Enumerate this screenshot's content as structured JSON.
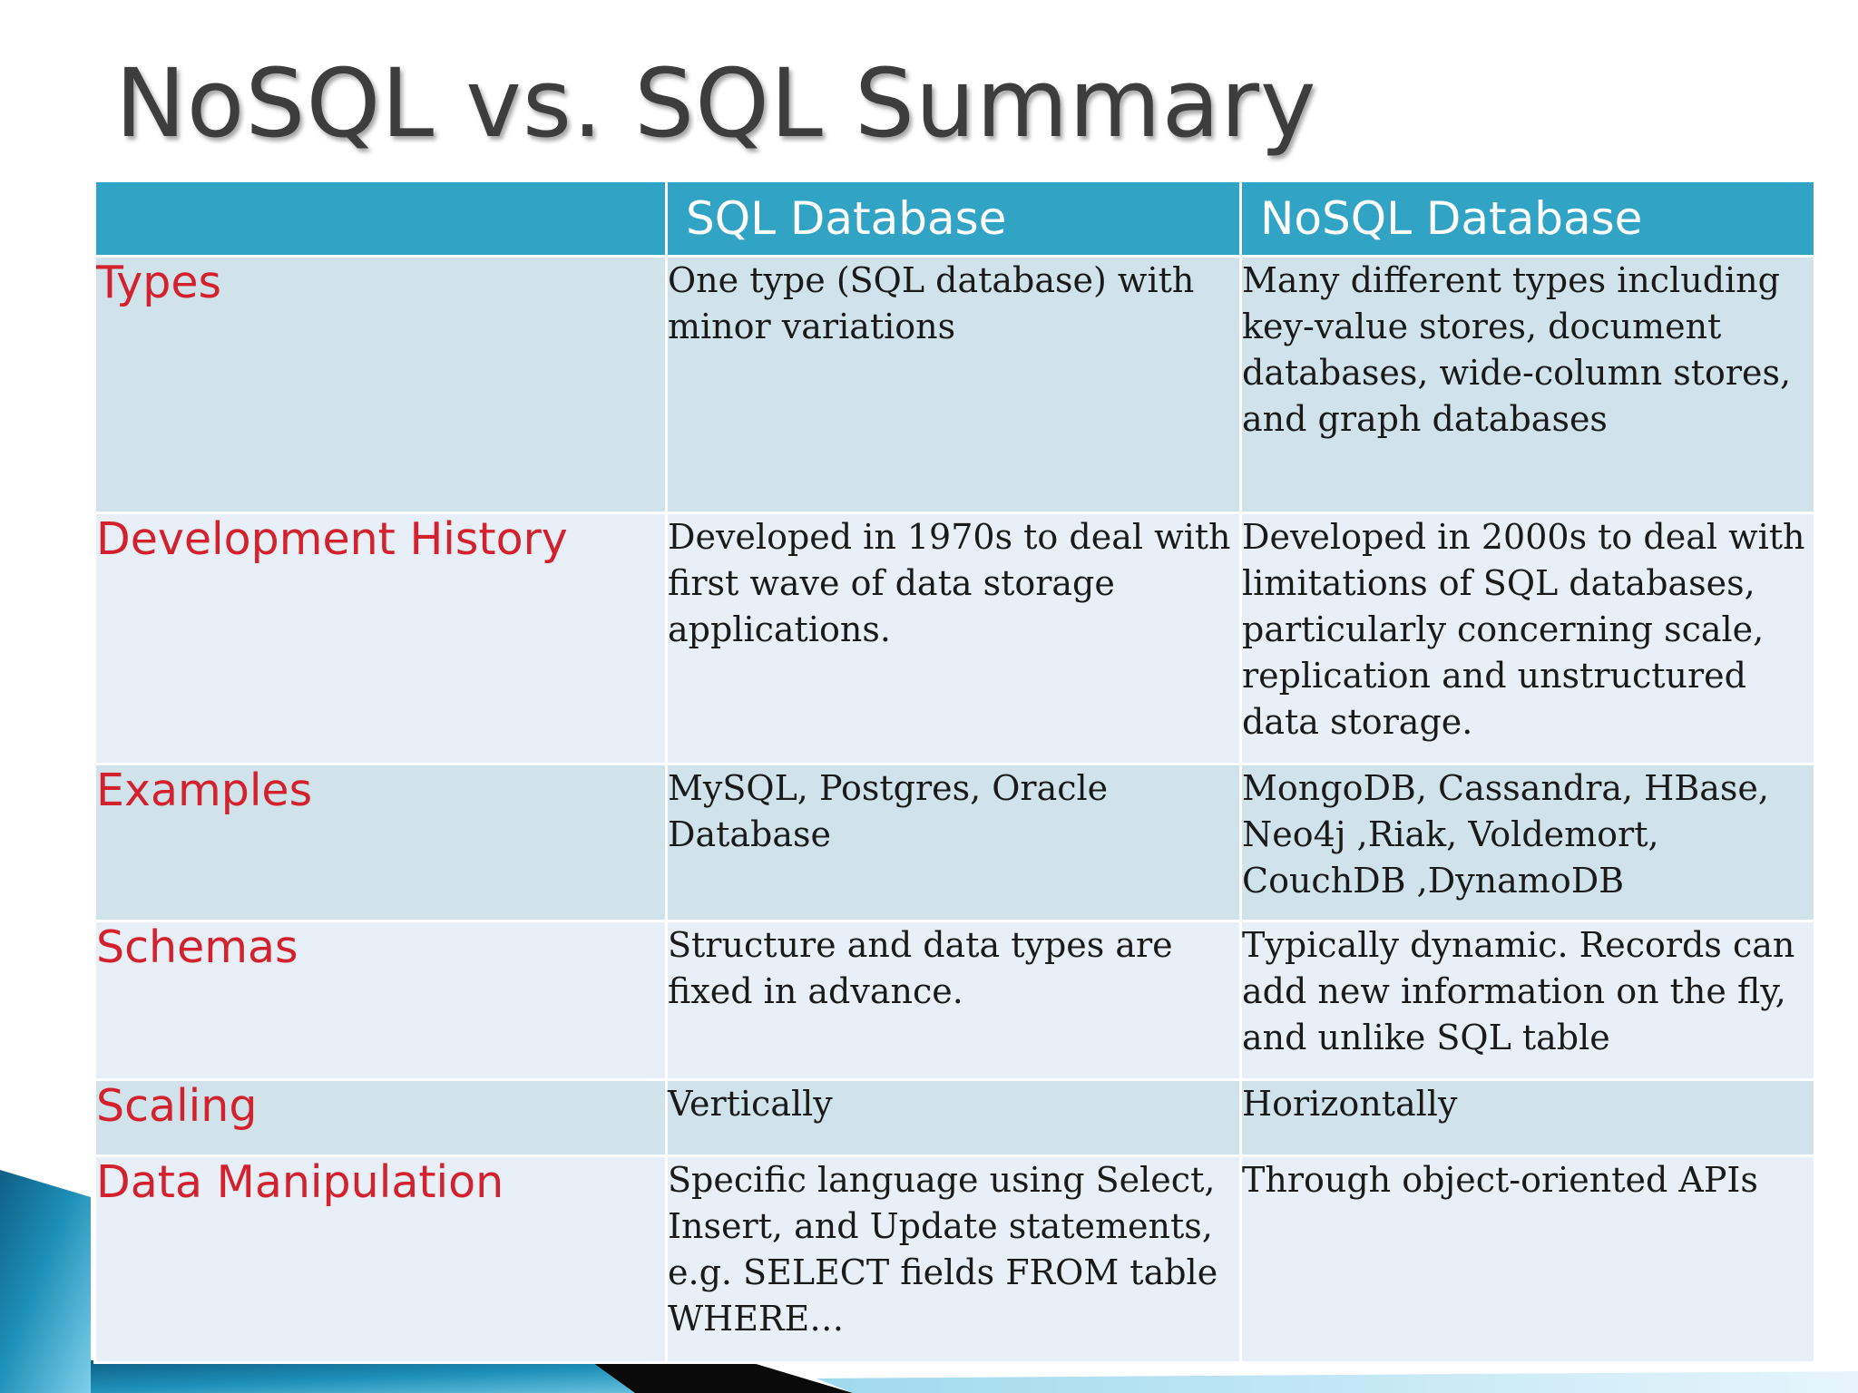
{
  "slide": {
    "title": "NoSQL vs. SQL Summary",
    "colors": {
      "header_bg": "#31a3c4",
      "header_text": "#ffffff",
      "row_label": "#d3212e",
      "row_dark": "#d0e2ea",
      "row_light": "#e8eff6",
      "title": "#3d3d3d"
    }
  },
  "table": {
    "headers": [
      "",
      "SQL Database",
      "NoSQL Database"
    ],
    "rows": [
      {
        "label": "Types",
        "sql": "One type (SQL database) with minor variations",
        "nosql": "Many different types including key-value stores, document databases, wide-column stores, and graph databases"
      },
      {
        "label": "Development History",
        "sql": "Developed in 1970s to deal with first wave of data storage applications.",
        "nosql": "Developed in 2000s to deal with limitations of SQL databases, particularly concerning scale, replication and unstructured data storage."
      },
      {
        "label": "Examples",
        "sql": "MySQL, Postgres, Oracle Database",
        "nosql": "MongoDB, Cassandra, HBase, Neo4j ,Riak, Voldemort, CouchDB ,DynamoDB"
      },
      {
        "label": "Schemas",
        "sql": "Structure and data types are fixed in advance.",
        "nosql": "Typically dynamic. Records can add new information on the fly, and unlike SQL table"
      },
      {
        "label": "Scaling",
        "sql": "Vertically",
        "nosql": "Horizontally"
      },
      {
        "label": "Data Manipulation",
        "sql": "Specific language using Select, Insert, and Update statements, e.g. SELECT fields FROM table WHERE…",
        "nosql": "Through object-oriented APIs"
      }
    ]
  }
}
